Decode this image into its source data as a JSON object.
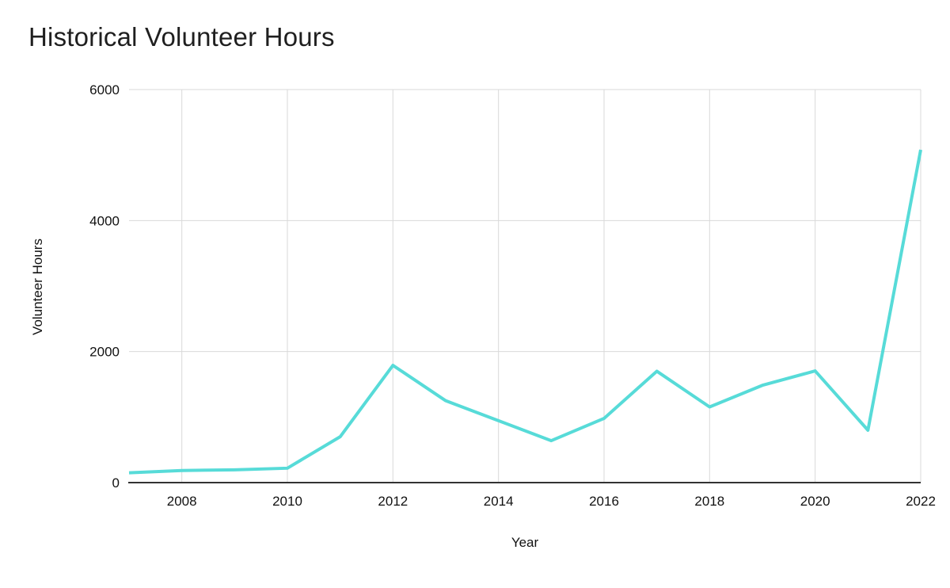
{
  "title": "Historical Volunteer Hours",
  "chart_data": {
    "type": "line",
    "title": "Historical Volunteer Hours",
    "xlabel": "Year",
    "ylabel": "Volunteer Hours",
    "x": [
      2007,
      2008,
      2009,
      2010,
      2011,
      2012,
      2013,
      2014,
      2015,
      2016,
      2017,
      2018,
      2019,
      2020,
      2021,
      2022
    ],
    "series": [
      {
        "name": "Volunteer Hours",
        "values": [
          150,
          185,
          195,
          220,
          700,
          1790,
          1250,
          945,
          640,
          980,
          1700,
          1155,
          1485,
          1705,
          800,
          5080
        ]
      }
    ],
    "x_ticks": [
      2008,
      2010,
      2012,
      2014,
      2016,
      2018,
      2020,
      2022
    ],
    "y_ticks": [
      0,
      2000,
      4000,
      6000
    ],
    "xlim": [
      2007,
      2022
    ],
    "ylim": [
      0,
      6000
    ],
    "grid": true,
    "legend": "none",
    "colors": {
      "line": "#57dbd8",
      "grid": "#d9d9d9",
      "axis": "#333333",
      "tick_text": "#111111",
      "title_text": "#1f1f1f"
    }
  }
}
